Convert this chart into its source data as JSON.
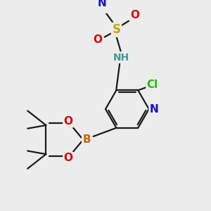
{
  "background_color": "#ececec",
  "figsize": [
    3.0,
    3.0
  ],
  "dpi": 100,
  "bond_color": "#1a1a1a",
  "bond_lw": 1.6,
  "colors": {
    "N": "#1010cc",
    "O": "#dd0000",
    "S": "#bbaa00",
    "B": "#cc6600",
    "Cl": "#22bb00",
    "NH": "#449999",
    "C": "#1a1a1a"
  }
}
